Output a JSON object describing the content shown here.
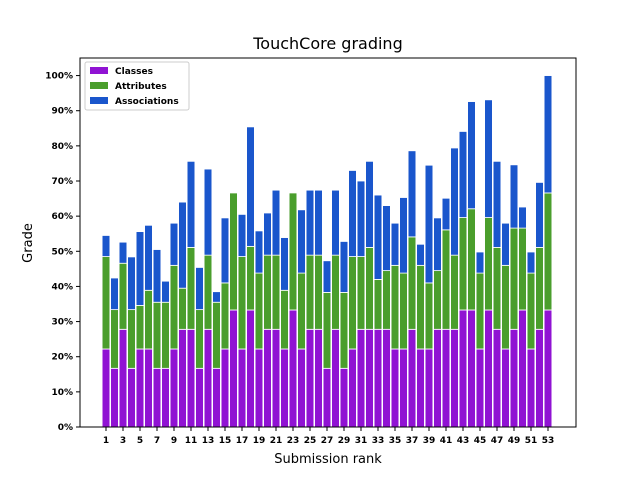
{
  "chart_data": {
    "type": "bar",
    "stacked": true,
    "title": "TouchCore grading",
    "xlabel": "Submission rank",
    "ylabel": "Grade",
    "ylim": [
      0,
      1.05
    ],
    "yticks": [
      0,
      0.1,
      0.2,
      0.3,
      0.4,
      0.5,
      0.6,
      0.7,
      0.8,
      0.9,
      1.0
    ],
    "ytick_labels": [
      "0%",
      "10%",
      "20%",
      "30%",
      "40%",
      "50%",
      "60%",
      "70%",
      "80%",
      "90%",
      "100%"
    ],
    "x": [
      1,
      2,
      3,
      4,
      5,
      6,
      7,
      8,
      9,
      10,
      11,
      12,
      13,
      14,
      15,
      16,
      17,
      18,
      19,
      20,
      21,
      22,
      23,
      24,
      25,
      26,
      27,
      28,
      29,
      30,
      31,
      32,
      33,
      34,
      35,
      36,
      37,
      38,
      39,
      40,
      41,
      42,
      43,
      44,
      45,
      46,
      47,
      48,
      49,
      50,
      51,
      52,
      53
    ],
    "xticks": [
      1,
      3,
      5,
      7,
      9,
      11,
      13,
      15,
      17,
      19,
      21,
      23,
      25,
      27,
      29,
      31,
      33,
      35,
      37,
      39,
      41,
      43,
      45,
      47,
      49,
      51,
      53
    ],
    "legend_position": "top-left",
    "series": [
      {
        "name": "Classes",
        "color": "#9013d3",
        "values": [
          0.222,
          0.167,
          0.278,
          0.167,
          0.222,
          0.222,
          0.167,
          0.167,
          0.222,
          0.278,
          0.278,
          0.167,
          0.278,
          0.167,
          0.222,
          0.333,
          0.222,
          0.333,
          0.222,
          0.278,
          0.278,
          0.222,
          0.333,
          0.222,
          0.278,
          0.278,
          0.167,
          0.278,
          0.167,
          0.222,
          0.278,
          0.278,
          0.278,
          0.278,
          0.222,
          0.222,
          0.278,
          0.222,
          0.222,
          0.278,
          0.278,
          0.278,
          0.333,
          0.333,
          0.222,
          0.333,
          0.278,
          0.222,
          0.278,
          0.333,
          0.222,
          0.278,
          0.333
        ]
      },
      {
        "name": "Attributes",
        "color": "#4a9e2c",
        "values": [
          0.263,
          0.167,
          0.188,
          0.167,
          0.124,
          0.167,
          0.188,
          0.188,
          0.238,
          0.117,
          0.233,
          0.167,
          0.211,
          0.188,
          0.188,
          0.333,
          0.263,
          0.181,
          0.216,
          0.211,
          0.211,
          0.167,
          0.333,
          0.216,
          0.211,
          0.211,
          0.216,
          0.211,
          0.216,
          0.263,
          0.207,
          0.233,
          0.142,
          0.167,
          0.238,
          0.216,
          0.263,
          0.238,
          0.188,
          0.167,
          0.283,
          0.211,
          0.263,
          0.288,
          0.216,
          0.263,
          0.233,
          0.238,
          0.288,
          0.233,
          0.216,
          0.233,
          0.333
        ]
      },
      {
        "name": "Associations",
        "color": "#1a56cc",
        "values": [
          0.06,
          0.09,
          0.06,
          0.15,
          0.21,
          0.185,
          0.15,
          0.06,
          0.12,
          0.245,
          0.245,
          0.12,
          0.245,
          0.03,
          0.185,
          0.0,
          0.12,
          0.34,
          0.12,
          0.12,
          0.185,
          0.15,
          0.0,
          0.18,
          0.185,
          0.185,
          0.09,
          0.185,
          0.145,
          0.245,
          0.215,
          0.245,
          0.24,
          0.185,
          0.12,
          0.215,
          0.245,
          0.06,
          0.335,
          0.15,
          0.09,
          0.305,
          0.245,
          0.305,
          0.06,
          0.335,
          0.245,
          0.12,
          0.18,
          0.06,
          0.06,
          0.185,
          0.334
        ]
      }
    ]
  }
}
